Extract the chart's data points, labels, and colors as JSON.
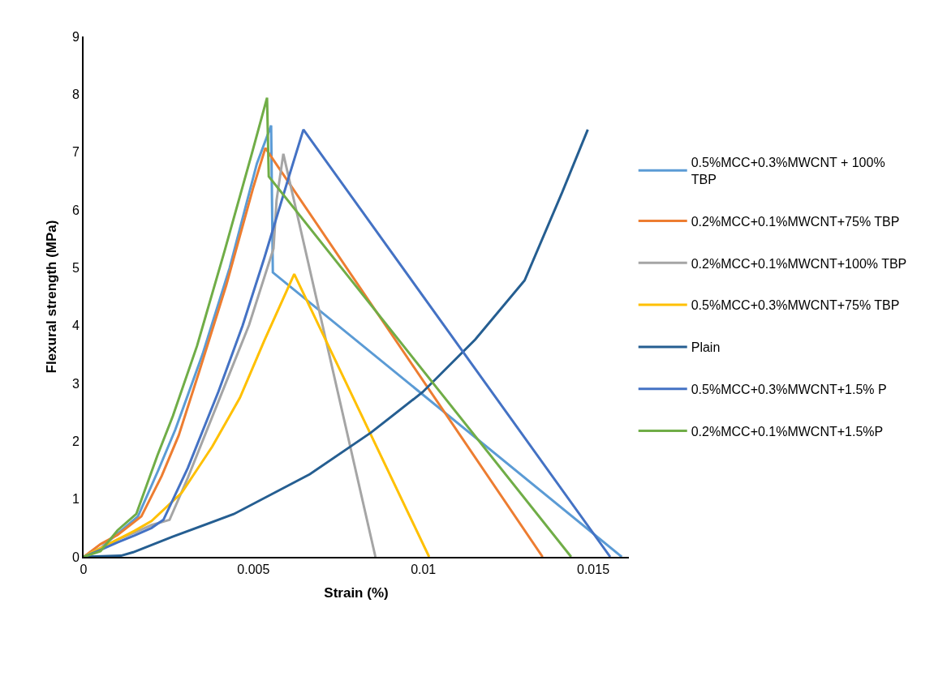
{
  "chart_data": {
    "type": "line",
    "xlabel": "Strain (%)",
    "ylabel": "Flexural strength (MPa)",
    "xlim": [
      0,
      0.01605
    ],
    "xticks": [
      0,
      0.005,
      0.01,
      0.015
    ],
    "ylim": [
      0,
      9
    ],
    "yticks": [
      0,
      1,
      2,
      3,
      4,
      5,
      6,
      7,
      8,
      9
    ],
    "legend": "right",
    "marker": "none",
    "line_style": "solid",
    "series": [
      {
        "name": "0.5%MCC+0.3%MWCNT + 100% TBP",
        "color": "#5b9bd5",
        "x": [
          0,
          0.0005,
          0.001,
          0.0016,
          0.0022,
          0.0027,
          0.0035,
          0.0043,
          0.0051,
          0.00552,
          0.00557,
          0.01584
        ],
        "values": [
          0,
          0.15,
          0.4,
          0.7,
          1.5,
          2.2,
          3.5,
          5.0,
          6.8,
          7.46,
          4.92,
          0
        ]
      },
      {
        "name": " 0.2%MCC+0.1%MWCNT+75% TBP",
        "color": "#ed7d31",
        "x": [
          0,
          0.0005,
          0.001,
          0.0017,
          0.0023,
          0.0028,
          0.0034,
          0.0042,
          0.005,
          0.00535,
          0.01351
        ],
        "values": [
          0,
          0.22,
          0.38,
          0.7,
          1.4,
          2.1,
          3.2,
          4.7,
          6.4,
          7.07,
          0
        ]
      },
      {
        "name": " 0.2%MCC+0.1%MWCNT+100% TBP",
        "color": "#a5a5a5",
        "x": [
          0,
          0.0005,
          0.001,
          0.0015,
          0.002,
          0.00253,
          0.00307,
          0.00397,
          0.00487,
          0.00559,
          0.00568,
          0.00588,
          0.00859
        ],
        "values": [
          0,
          0.15,
          0.3,
          0.42,
          0.55,
          0.64,
          1.37,
          2.69,
          4.01,
          5.33,
          6.17,
          6.97,
          0
        ]
      },
      {
        "name": "0.5%MCC+0.3%MWCNT+75% TBP",
        "color": "#ffc000",
        "x": [
          0,
          0.0005,
          0.001,
          0.0015,
          0.002,
          0.00289,
          0.00379,
          0.0046,
          0.00532,
          0.0062,
          0.01017
        ],
        "values": [
          0,
          0.15,
          0.3,
          0.45,
          0.62,
          1.11,
          1.91,
          2.75,
          3.74,
          4.89,
          0
        ]
      },
      {
        "name": "Plain",
        "color": "#255e91",
        "x": [
          0,
          0.0011,
          0.00146,
          0.00262,
          0.00442,
          0.00666,
          0.00846,
          0.00998,
          0.01153,
          0.01298,
          0.01409,
          0.01484
        ],
        "values": [
          0,
          0.02,
          0.08,
          0.35,
          0.74,
          1.43,
          2.15,
          2.85,
          3.76,
          4.78,
          6.31,
          7.39
        ]
      },
      {
        "name": "0.5%MCC+0.3%MWCNT+1.5% P",
        "color": "#4472c4",
        "x": [
          0,
          0.0005,
          0.001,
          0.0015,
          0.002,
          0.00235,
          0.00307,
          0.00397,
          0.00468,
          0.00532,
          0.00603,
          0.00647,
          0.0155
        ],
        "values": [
          0,
          0.12,
          0.25,
          0.37,
          0.5,
          0.64,
          1.54,
          2.86,
          4.0,
          5.17,
          6.55,
          7.39,
          0
        ]
      },
      {
        "name": "0.2%MCC+0.1%MWCNT+1.5%P",
        "color": "#70ad47",
        "x": [
          0,
          0.0005,
          0.001,
          0.00155,
          0.00217,
          0.00263,
          0.00334,
          0.00415,
          0.00495,
          0.0054,
          0.00545,
          0.01435
        ],
        "values": [
          0,
          0.1,
          0.46,
          0.74,
          1.75,
          2.44,
          3.65,
          5.29,
          6.97,
          7.94,
          6.58,
          0
        ]
      }
    ]
  }
}
